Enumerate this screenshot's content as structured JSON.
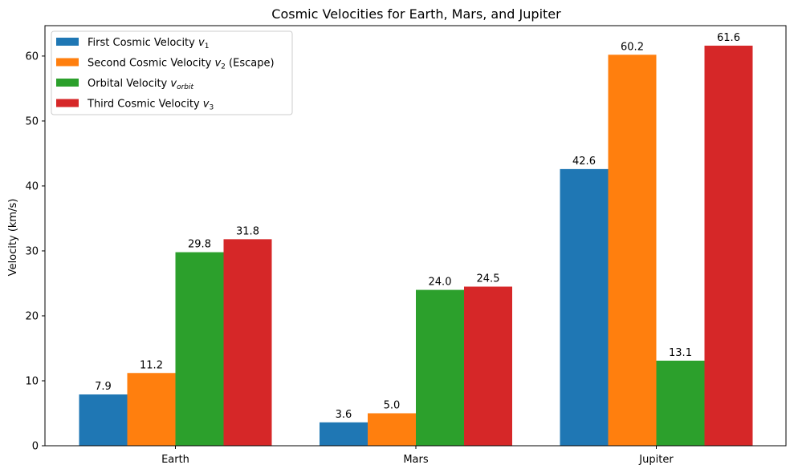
{
  "chart_data": {
    "type": "bar",
    "title": "Cosmic Velocities for Earth, Mars, and Jupiter",
    "xlabel": "",
    "ylabel": "Velocity (km/s)",
    "categories": [
      "Earth",
      "Mars",
      "Jupiter"
    ],
    "ylim": [
      0,
      64.68
    ],
    "yticks": [
      0,
      10,
      20,
      30,
      40,
      50,
      60
    ],
    "grid": false,
    "legend_position": "top-left",
    "series": [
      {
        "name": "First Cosmic Velocity v1",
        "legend": {
          "prefix": "First Cosmic Velocity ",
          "var": "v",
          "sub": "1",
          "suffix": ""
        },
        "color": "#1f77b4",
        "values": [
          7.9,
          3.6,
          42.6
        ],
        "labels": [
          "7.9",
          "3.6",
          "42.6"
        ]
      },
      {
        "name": "Second Cosmic Velocity v2 (Escape)",
        "legend": {
          "prefix": "Second Cosmic Velocity ",
          "var": "v",
          "sub": "2",
          "suffix": " (Escape)"
        },
        "color": "#ff7f0e",
        "values": [
          11.2,
          5.0,
          60.2
        ],
        "labels": [
          "11.2",
          "5.0",
          "60.2"
        ]
      },
      {
        "name": "Orbital Velocity v_orbit",
        "legend": {
          "prefix": "Orbital Velocity ",
          "var": "v",
          "sub": "orbit",
          "suffix": ""
        },
        "color": "#2ca02c",
        "values": [
          29.8,
          24.0,
          13.1
        ],
        "labels": [
          "29.8",
          "24.0",
          "13.1"
        ]
      },
      {
        "name": "Third Cosmic Velocity v3",
        "legend": {
          "prefix": "Third Cosmic Velocity ",
          "var": "v",
          "sub": "3",
          "suffix": ""
        },
        "color": "#d62728",
        "values": [
          31.8,
          24.5,
          61.6
        ],
        "labels": [
          "31.8",
          "24.5",
          "61.6"
        ]
      }
    ]
  }
}
